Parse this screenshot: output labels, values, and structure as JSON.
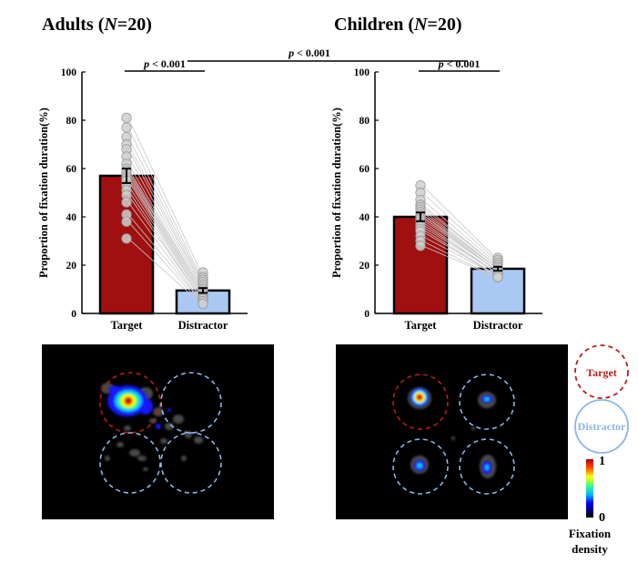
{
  "colors": {
    "target": "#a01010",
    "distractor": "#a9c8f3",
    "target_ring": "#b81c1c",
    "distractor_ring": "#8bb6ea",
    "dots": "#cfcfcf",
    "heat_bg": "#000000"
  },
  "colorbar": {
    "max_label": "1",
    "min_label": "0",
    "title_line1": "Fixation",
    "title_line2": "density",
    "colormap": "jet"
  },
  "legend": {
    "target_label": "Target",
    "distractor_label": "Distractor"
  },
  "comparison": {
    "label_p": "p",
    "label_rest": " < 0.001"
  },
  "chart_data": [
    {
      "type": "bar",
      "panel_title_prefix": "Adults  (",
      "panel_title_n": "N",
      "panel_title_suffix": "=20)",
      "categories": [
        "Target",
        "Distractor"
      ],
      "values": [
        57,
        9.5
      ],
      "sem": [
        3.0,
        1.0
      ],
      "ylabel": "Proportion of fixation duration(%)",
      "ylim": [
        0,
        100
      ],
      "yticks": [
        0,
        20,
        40,
        60,
        80,
        100
      ],
      "within_p_label": "p",
      "within_p_rest": " < 0.001",
      "individual_target": [
        81,
        77,
        73,
        70,
        68,
        65,
        62,
        60,
        59,
        58,
        57,
        56,
        55,
        53,
        51,
        49,
        46,
        41,
        38,
        31
      ],
      "individual_distractor": [
        17,
        15,
        14,
        13,
        12,
        11,
        10,
        10,
        9,
        9,
        8,
        8,
        7,
        7,
        6,
        6,
        5,
        5,
        4,
        4
      ]
    },
    {
      "type": "bar",
      "panel_title_prefix": "Children (",
      "panel_title_n": "N",
      "panel_title_suffix": "=20)",
      "categories": [
        "Target",
        "Distractor"
      ],
      "values": [
        40,
        18.5
      ],
      "sem": [
        1.8,
        0.8
      ],
      "ylabel": "Proportion of fixation duration(%)",
      "ylim": [
        0,
        100
      ],
      "yticks": [
        0,
        20,
        40,
        60,
        80,
        100
      ],
      "within_p_label": "p",
      "within_p_rest": " < 0.001",
      "individual_target": [
        53,
        50,
        47,
        45,
        44,
        43,
        42,
        41,
        41,
        40,
        40,
        39,
        38,
        37,
        36,
        35,
        34,
        32,
        30,
        28
      ],
      "individual_distractor": [
        23,
        22,
        21,
        20,
        20,
        19,
        19,
        19,
        18,
        18,
        18,
        18,
        17,
        17,
        17,
        16,
        16,
        16,
        15,
        15
      ]
    }
  ]
}
